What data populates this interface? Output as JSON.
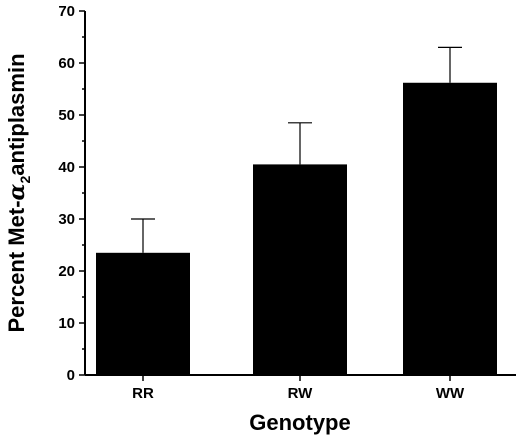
{
  "chart_data": {
    "type": "bar",
    "categories": [
      "RR",
      "RW",
      "WW"
    ],
    "values": [
      23.5,
      40.5,
      56.2
    ],
    "error_upper": [
      6.5,
      8.0,
      6.8
    ],
    "xlabel": "Genotype",
    "ylabel": "Percent Met-α2antiplasmin",
    "ylabel_parts": {
      "before": "Percent Met-",
      "greek": "α",
      "subscript": "2",
      "after": "antiplasmin"
    },
    "ylim": [
      0,
      70
    ],
    "yticks": [
      0,
      10,
      20,
      30,
      40,
      50,
      60,
      70
    ],
    "grid": false,
    "bar_color": "#000000"
  }
}
